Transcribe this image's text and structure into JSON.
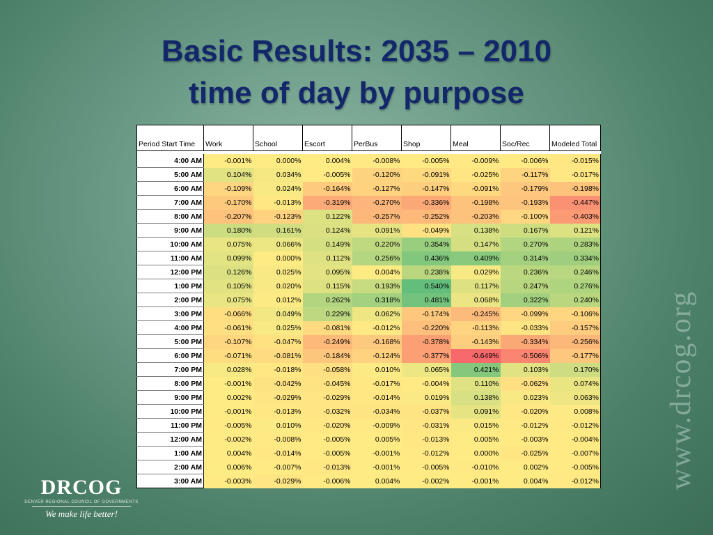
{
  "slide": {
    "title_line1": "Basic Results: 2035 – 2010",
    "title_line2": "time of day by purpose",
    "watermark": "www.drcog.org"
  },
  "logo": {
    "mark": "DRCOG",
    "subtitle": "DENVER REGIONAL COUNCIL OF GOVERNMENTS",
    "tagline": "We make life better!"
  },
  "table": {
    "headers": [
      "Period Start Time",
      "Work",
      "School",
      "Escort",
      "PerBus",
      "Shop",
      "Meal",
      "Soc/Rec",
      "Modeled Total"
    ],
    "rows": [
      {
        "time": "4:00 AM",
        "v": [
          -0.001,
          0.0,
          0.004,
          -0.008,
          -0.005,
          -0.009,
          -0.006,
          -0.015
        ],
        "t": [
          "-0.001%",
          "0.000%",
          "0.004%",
          "-0.008%",
          "-0.005%",
          "-0.009%",
          "-0.006%",
          "-0.015%"
        ]
      },
      {
        "time": "5:00 AM",
        "v": [
          0.104,
          0.034,
          -0.005,
          -0.12,
          -0.091,
          -0.025,
          -0.117,
          -0.017
        ],
        "t": [
          "0.104%",
          "0.034%",
          "-0.005%",
          "-0.120%",
          "-0.091%",
          "-0.025%",
          "-0.117%",
          "-0.017%"
        ]
      },
      {
        "time": "6:00 AM",
        "v": [
          -0.109,
          0.024,
          -0.164,
          -0.127,
          -0.147,
          -0.091,
          -0.179,
          -0.198
        ],
        "t": [
          "-0.109%",
          "0.024%",
          "-0.164%",
          "-0.127%",
          "-0.147%",
          "-0.091%",
          "-0.179%",
          "-0.198%"
        ]
      },
      {
        "time": "7:00 AM",
        "v": [
          -0.17,
          -0.013,
          -0.319,
          -0.27,
          -0.336,
          -0.198,
          -0.193,
          -0.447
        ],
        "t": [
          "-0.170%",
          "-0.013%",
          "-0.319%",
          "-0.270%",
          "-0.336%",
          "-0.198%",
          "-0.193%",
          "-0.447%"
        ]
      },
      {
        "time": "8:00 AM",
        "v": [
          -0.207,
          -0.123,
          0.122,
          -0.257,
          -0.252,
          -0.203,
          -0.1,
          -0.403
        ],
        "t": [
          "-0.207%",
          "-0.123%",
          "0.122%",
          "-0.257%",
          "-0.252%",
          "-0.203%",
          "-0.100%",
          "-0.403%"
        ]
      },
      {
        "time": "9:00 AM",
        "v": [
          0.18,
          0.161,
          0.124,
          0.091,
          -0.049,
          0.138,
          0.167,
          0.121
        ],
        "t": [
          "0.180%",
          "0.161%",
          "0.124%",
          "0.091%",
          "-0.049%",
          "0.138%",
          "0.167%",
          "0.121%"
        ]
      },
      {
        "time": "10:00 AM",
        "v": [
          0.075,
          0.066,
          0.149,
          0.22,
          0.354,
          0.147,
          0.27,
          0.283
        ],
        "t": [
          "0.075%",
          "0.066%",
          "0.149%",
          "0.220%",
          "0.354%",
          "0.147%",
          "0.270%",
          "0.283%"
        ]
      },
      {
        "time": "11:00 AM",
        "v": [
          0.099,
          0.0,
          0.112,
          0.256,
          0.436,
          0.409,
          0.314,
          0.334
        ],
        "t": [
          "0.099%",
          "0.000%",
          "0.112%",
          "0.256%",
          "0.436%",
          "0.409%",
          "0.314%",
          "0.334%"
        ]
      },
      {
        "time": "12:00 PM",
        "v": [
          0.126,
          0.025,
          0.095,
          0.004,
          0.238,
          0.029,
          0.236,
          0.246
        ],
        "t": [
          "0.126%",
          "0.025%",
          "0.095%",
          "0.004%",
          "0.238%",
          "0.029%",
          "0.236%",
          "0.246%"
        ]
      },
      {
        "time": "1:00 PM",
        "v": [
          0.105,
          0.02,
          0.115,
          0.193,
          0.54,
          0.117,
          0.247,
          0.276
        ],
        "t": [
          "0.105%",
          "0.020%",
          "0.115%",
          "0.193%",
          "0.540%",
          "0.117%",
          "0.247%",
          "0.276%"
        ]
      },
      {
        "time": "2:00 PM",
        "v": [
          0.075,
          0.012,
          0.262,
          0.318,
          0.481,
          0.068,
          0.322,
          0.24
        ],
        "t": [
          "0.075%",
          "0.012%",
          "0.262%",
          "0.318%",
          "0.481%",
          "0.068%",
          "0.322%",
          "0.240%"
        ]
      },
      {
        "time": "3:00 PM",
        "v": [
          -0.066,
          0.049,
          0.229,
          0.062,
          -0.174,
          -0.245,
          -0.099,
          -0.106
        ],
        "t": [
          "-0.066%",
          "0.049%",
          "0.229%",
          "0.062%",
          "-0.174%",
          "-0.245%",
          "-0.099%",
          "-0.106%"
        ]
      },
      {
        "time": "4:00 PM",
        "v": [
          -0.061,
          0.025,
          -0.081,
          -0.012,
          -0.22,
          -0.113,
          -0.033,
          -0.157
        ],
        "t": [
          "-0.061%",
          "0.025%",
          "-0.081%",
          "-0.012%",
          "-0.220%",
          "-0.113%",
          "-0.033%",
          "-0.157%"
        ]
      },
      {
        "time": "5:00 PM",
        "v": [
          -0.107,
          -0.047,
          -0.249,
          -0.168,
          -0.378,
          -0.143,
          -0.334,
          -0.256
        ],
        "t": [
          "-0.107%",
          "-0.047%",
          "-0.249%",
          "-0.168%",
          "-0.378%",
          "-0.143%",
          "-0.334%",
          "-0.256%"
        ]
      },
      {
        "time": "6:00 PM",
        "v": [
          -0.071,
          -0.081,
          -0.184,
          -0.124,
          -0.377,
          -0.649,
          -0.506,
          -0.177
        ],
        "t": [
          "-0.071%",
          "-0.081%",
          "-0.184%",
          "-0.124%",
          "-0.377%",
          "-0.649%",
          "-0.506%",
          "-0.177%"
        ]
      },
      {
        "time": "7:00 PM",
        "v": [
          0.028,
          -0.018,
          -0.058,
          0.01,
          0.065,
          0.421,
          0.103,
          0.17
        ],
        "t": [
          "0.028%",
          "-0.018%",
          "-0.058%",
          "0.010%",
          "0.065%",
          "0.421%",
          "0.103%",
          "0.170%"
        ]
      },
      {
        "time": "8:00 PM",
        "v": [
          -0.001,
          -0.042,
          -0.045,
          -0.017,
          -0.004,
          0.11,
          -0.062,
          0.074
        ],
        "t": [
          "-0.001%",
          "-0.042%",
          "-0.045%",
          "-0.017%",
          "-0.004%",
          "0.110%",
          "-0.062%",
          "0.074%"
        ]
      },
      {
        "time": "9:00 PM",
        "v": [
          0.002,
          -0.029,
          -0.029,
          -0.014,
          0.019,
          0.138,
          0.023,
          0.063
        ],
        "t": [
          "0.002%",
          "-0.029%",
          "-0.029%",
          "-0.014%",
          "0.019%",
          "0.138%",
          "0.023%",
          "0.063%"
        ]
      },
      {
        "time": "10:00 PM",
        "v": [
          -0.001,
          -0.013,
          -0.032,
          -0.034,
          -0.037,
          0.091,
          -0.02,
          0.008
        ],
        "t": [
          "-0.001%",
          "-0.013%",
          "-0.032%",
          "-0.034%",
          "-0.037%",
          "0.091%",
          "-0.020%",
          "0.008%"
        ]
      },
      {
        "time": "11:00 PM",
        "v": [
          -0.005,
          0.01,
          -0.02,
          -0.009,
          -0.031,
          0.015,
          -0.012,
          -0.012
        ],
        "t": [
          "-0.005%",
          "0.010%",
          "-0.020%",
          "-0.009%",
          "-0.031%",
          "0.015%",
          "-0.012%",
          "-0.012%"
        ]
      },
      {
        "time": "12:00 AM",
        "v": [
          -0.002,
          -0.008,
          -0.005,
          0.005,
          -0.013,
          0.005,
          -0.003,
          -0.004
        ],
        "t": [
          "-0.002%",
          "-0.008%",
          "-0.005%",
          "0.005%",
          "-0.013%",
          "0.005%",
          "-0.003%",
          "-0.004%"
        ]
      },
      {
        "time": "1:00 AM",
        "v": [
          0.004,
          -0.014,
          -0.005,
          -0.001,
          -0.012,
          0.0,
          -0.025,
          -0.007
        ],
        "t": [
          "0.004%",
          "-0.014%",
          "-0.005%",
          "-0.001%",
          "-0.012%",
          "0.000%",
          "-0.025%",
          "-0.007%"
        ]
      },
      {
        "time": "2:00 AM",
        "v": [
          0.006,
          -0.007,
          -0.013,
          -0.001,
          -0.005,
          -0.01,
          0.002,
          -0.005
        ],
        "t": [
          "0.006%",
          "-0.007%",
          "-0.013%",
          "-0.001%",
          "-0.005%",
          "-0.010%",
          "0.002%",
          "-0.005%"
        ]
      },
      {
        "time": "3:00 AM",
        "v": [
          -0.003,
          -0.029,
          -0.006,
          0.004,
          -0.002,
          -0.001,
          0.004,
          -0.012
        ],
        "t": [
          "-0.003%",
          "-0.029%",
          "-0.006%",
          "0.004%",
          "-0.002%",
          "-0.001%",
          "0.004%",
          "-0.012%"
        ]
      }
    ],
    "colors": {
      "negative": "#f8696b",
      "neutral": "#ffeb84",
      "positive": "#63be7b"
    }
  }
}
